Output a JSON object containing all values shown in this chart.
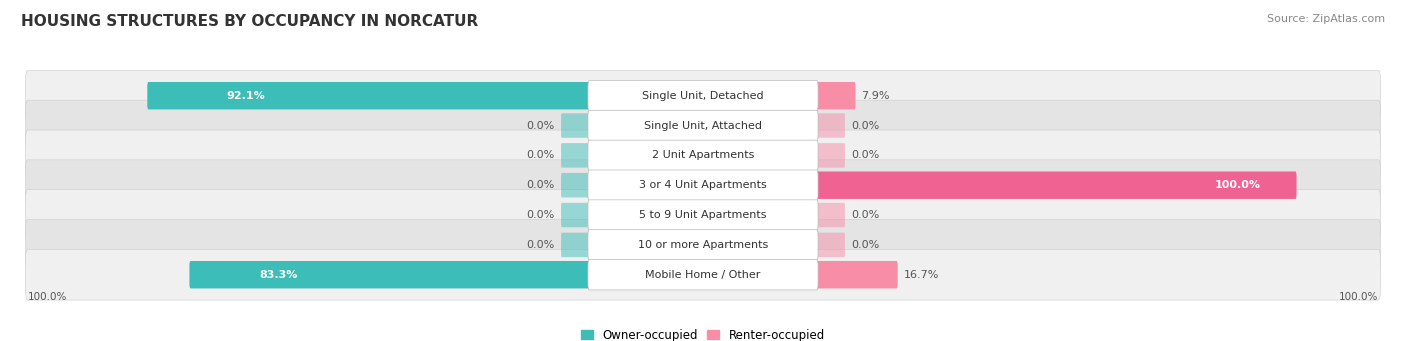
{
  "title": "HOUSING STRUCTURES BY OCCUPANCY IN NORCATUR",
  "source": "Source: ZipAtlas.com",
  "categories": [
    "Single Unit, Detached",
    "Single Unit, Attached",
    "2 Unit Apartments",
    "3 or 4 Unit Apartments",
    "5 to 9 Unit Apartments",
    "10 or more Apartments",
    "Mobile Home / Other"
  ],
  "owner_pct": [
    92.1,
    0.0,
    0.0,
    0.0,
    0.0,
    0.0,
    83.3
  ],
  "renter_pct": [
    7.9,
    0.0,
    0.0,
    100.0,
    0.0,
    0.0,
    16.7
  ],
  "owner_color": "#3dbdb7",
  "renter_color": "#f78da7",
  "renter_color_full": "#f06292",
  "owner_label": "Owner-occupied",
  "renter_label": "Renter-occupied",
  "row_bg_light": "#f0f0f0",
  "row_bg_dark": "#e4e4e4",
  "title_fontsize": 11,
  "source_fontsize": 8,
  "bar_label_fontsize": 8,
  "cat_label_fontsize": 8
}
